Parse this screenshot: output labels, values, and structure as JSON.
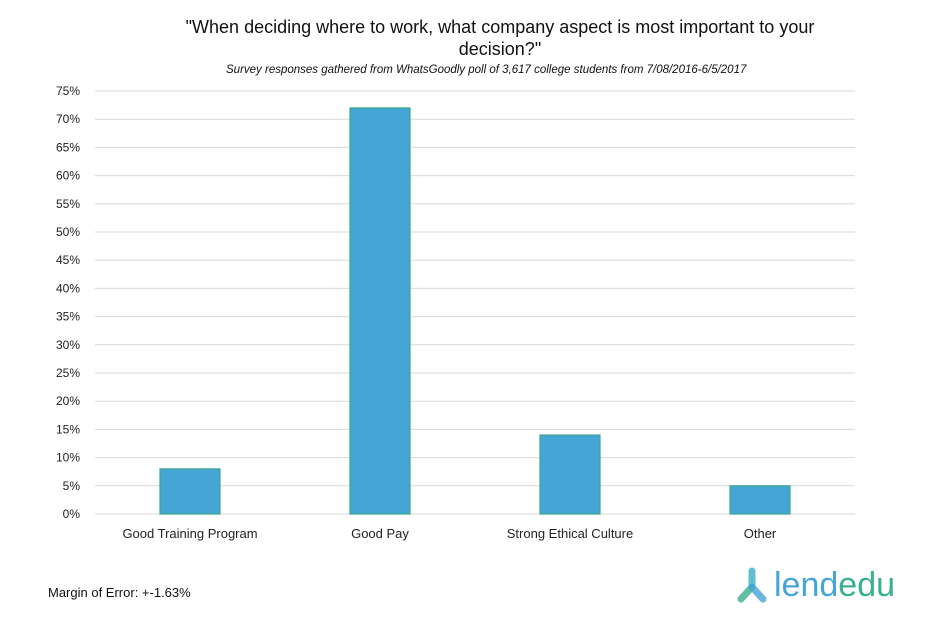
{
  "chart_data": {
    "type": "bar",
    "title": "\"When deciding where to work, what company aspect is most important to your decision?\"",
    "subtitle": "Survey responses gathered from WhatsGoodly poll of 3,617 college students from 7/08/2016-6/5/2017",
    "categories": [
      "Good Training Program",
      "Good Pay",
      "Strong Ethical Culture",
      "Other"
    ],
    "values": [
      8,
      72,
      14,
      5
    ],
    "ylim": [
      0,
      75
    ],
    "yticks": [
      0,
      5,
      10,
      15,
      20,
      25,
      30,
      35,
      40,
      45,
      50,
      55,
      60,
      65,
      70,
      75
    ],
    "ytick_suffix": "%",
    "grid": true,
    "bar_color": "#45a5d6",
    "bar_border_color": "#3aa88a"
  },
  "footer": {
    "margin_of_error": "Margin of Error: +-1.63%"
  },
  "logo": {
    "part1": "lend",
    "part2": "edu",
    "color1": "#45a5d6",
    "color2": "#3bb08f"
  }
}
